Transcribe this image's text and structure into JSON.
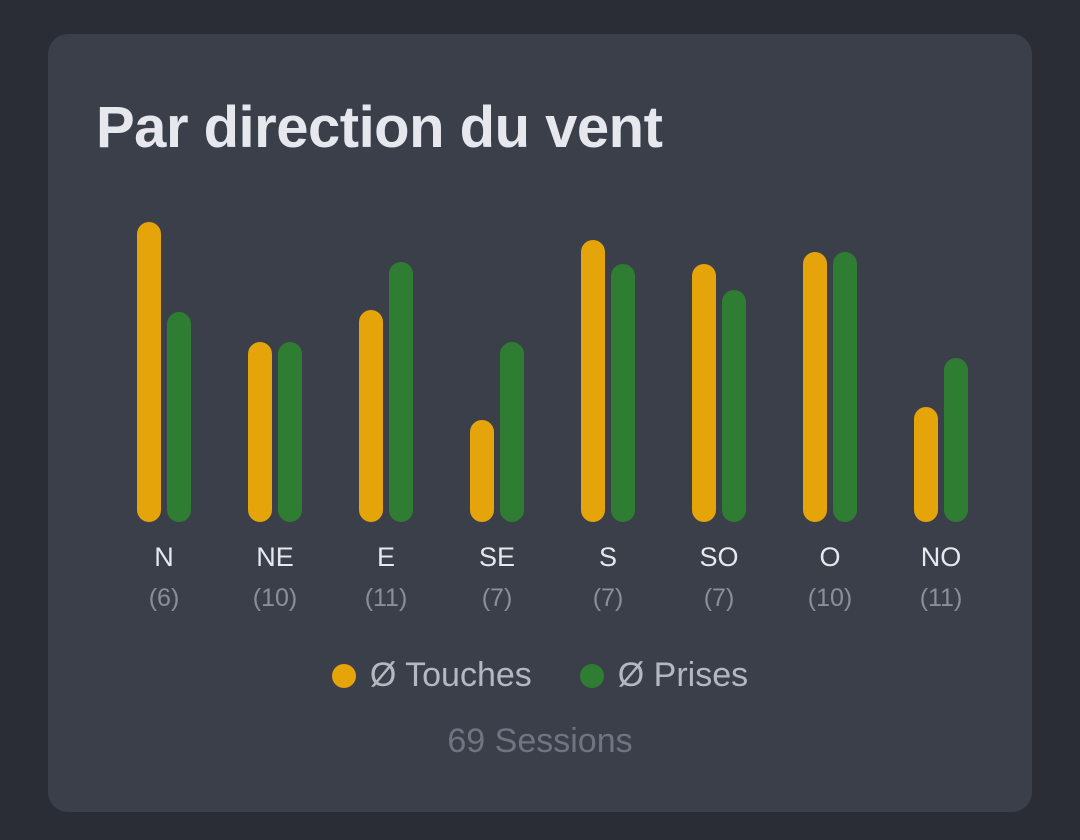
{
  "card": {
    "title": "Par direction du vent",
    "sessions": "69 Sessions"
  },
  "colors": {
    "touches": "#e5a50a",
    "prises": "#2e7d32",
    "tick_label": "#e6e8ee",
    "count_label": "#8a8f9a"
  },
  "chart_data": {
    "type": "bar",
    "title": "Par direction du vent",
    "categories": [
      "N",
      "NE",
      "E",
      "SE",
      "S",
      "SO",
      "O",
      "NO"
    ],
    "counts": [
      "(6)",
      "(10)",
      "(11)",
      "(7)",
      "(7)",
      "(7)",
      "(10)",
      "(11)"
    ],
    "ylim": [
      0,
      3
    ],
    "grid": false,
    "legend_position": "bottom-center",
    "series": [
      {
        "name": "Ø Touches",
        "color": "#e5a50a",
        "values": [
          3.0,
          1.8,
          2.12,
          1.02,
          2.82,
          2.58,
          2.7,
          1.15
        ]
      },
      {
        "name": "Ø Prises",
        "color": "#2e7d32",
        "values": [
          2.1,
          1.8,
          2.6,
          1.8,
          2.58,
          2.32,
          2.7,
          1.64
        ]
      }
    ]
  }
}
